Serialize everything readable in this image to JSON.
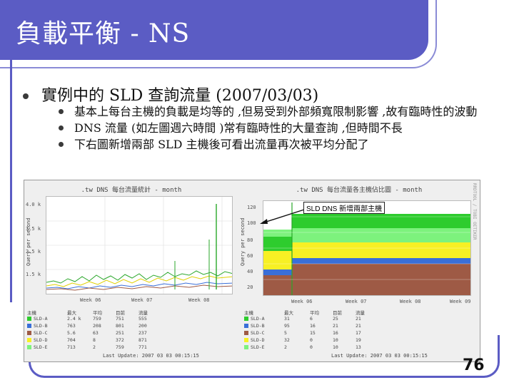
{
  "slide": {
    "title": "負載平衡 - NS",
    "main_bullet": "實例中的 SLD 查詢流量 (2007/03/03)",
    "sub_bullets": [
      "基本上每台主機的負載是均等的 ,但易受到外部頻寬限制影響 ,故有臨時性的波動",
      "DNS 流量 (如左圖週六時間 )常有臨時性的大量查詢 ,但時間不長",
      "下右圖新增兩部 SLD 主機後可看出流量再次被平均分配了"
    ],
    "annotation": "SLD DNS 新增兩部主機",
    "page_number": "76"
  },
  "left_chart": {
    "title": ".tw DNS 每台流量統計 - month",
    "ylabel": "Query per second",
    "y_ticks": [
      "4.0 k",
      "3.5 k",
      "2.5 k",
      "1.5 k"
    ],
    "x_ticks": [
      "Week 06",
      "Week 07",
      "Week 08"
    ],
    "legend_header": [
      "主機",
      "最大",
      "平均",
      "目前",
      "流量"
    ],
    "legend_rows": [
      [
        "SLD-A",
        "2.4 k",
        "759",
        "751",
        "555"
      ],
      [
        "SLD-B",
        "763",
        "208",
        "801",
        "200"
      ],
      [
        "SLD-C",
        "5.6",
        "63",
        "251",
        "237"
      ],
      [
        "SLD-D",
        "704",
        "8",
        "372",
        "871"
      ],
      [
        "SLD-E",
        "713",
        "2",
        "759",
        "771"
      ]
    ],
    "last_update": "Last Update: 2007 03 03 00:15:15"
  },
  "right_chart": {
    "title": ".tw DNS 每台流量各主機佔比圖 - month",
    "ylabel": "Query per second",
    "y_ticks": [
      "120",
      "100",
      "80",
      "60",
      "40",
      "20"
    ],
    "x_ticks": [
      "Week 06",
      "Week 07",
      "Week 08",
      "Week 09"
    ],
    "legend_header": [
      "主機",
      "最大",
      "平均",
      "目前",
      "流量"
    ],
    "legend_rows": [
      [
        "SLD-A",
        "31",
        "6",
        "25",
        "21"
      ],
      [
        "SLD-B",
        "95",
        "16",
        "21",
        "21"
      ],
      [
        "SLD-C",
        "5",
        "15",
        "16",
        "17"
      ],
      [
        "SLD-D",
        "32",
        "0",
        "10",
        "19"
      ],
      [
        "SLD-E",
        "2",
        "0",
        "10",
        "13"
      ]
    ],
    "last_update": "Last Update: 2007 03 03 00:15:15",
    "side_text": "RRDTOOL / TOBI OETIKER"
  },
  "colors": {
    "title_band": "#5b5cc4",
    "green": "#2ecc2e",
    "yellow": "#f7f024",
    "lightgreen": "#7df27d",
    "brown": "#9e5a45",
    "blue": "#3a6fd8"
  }
}
